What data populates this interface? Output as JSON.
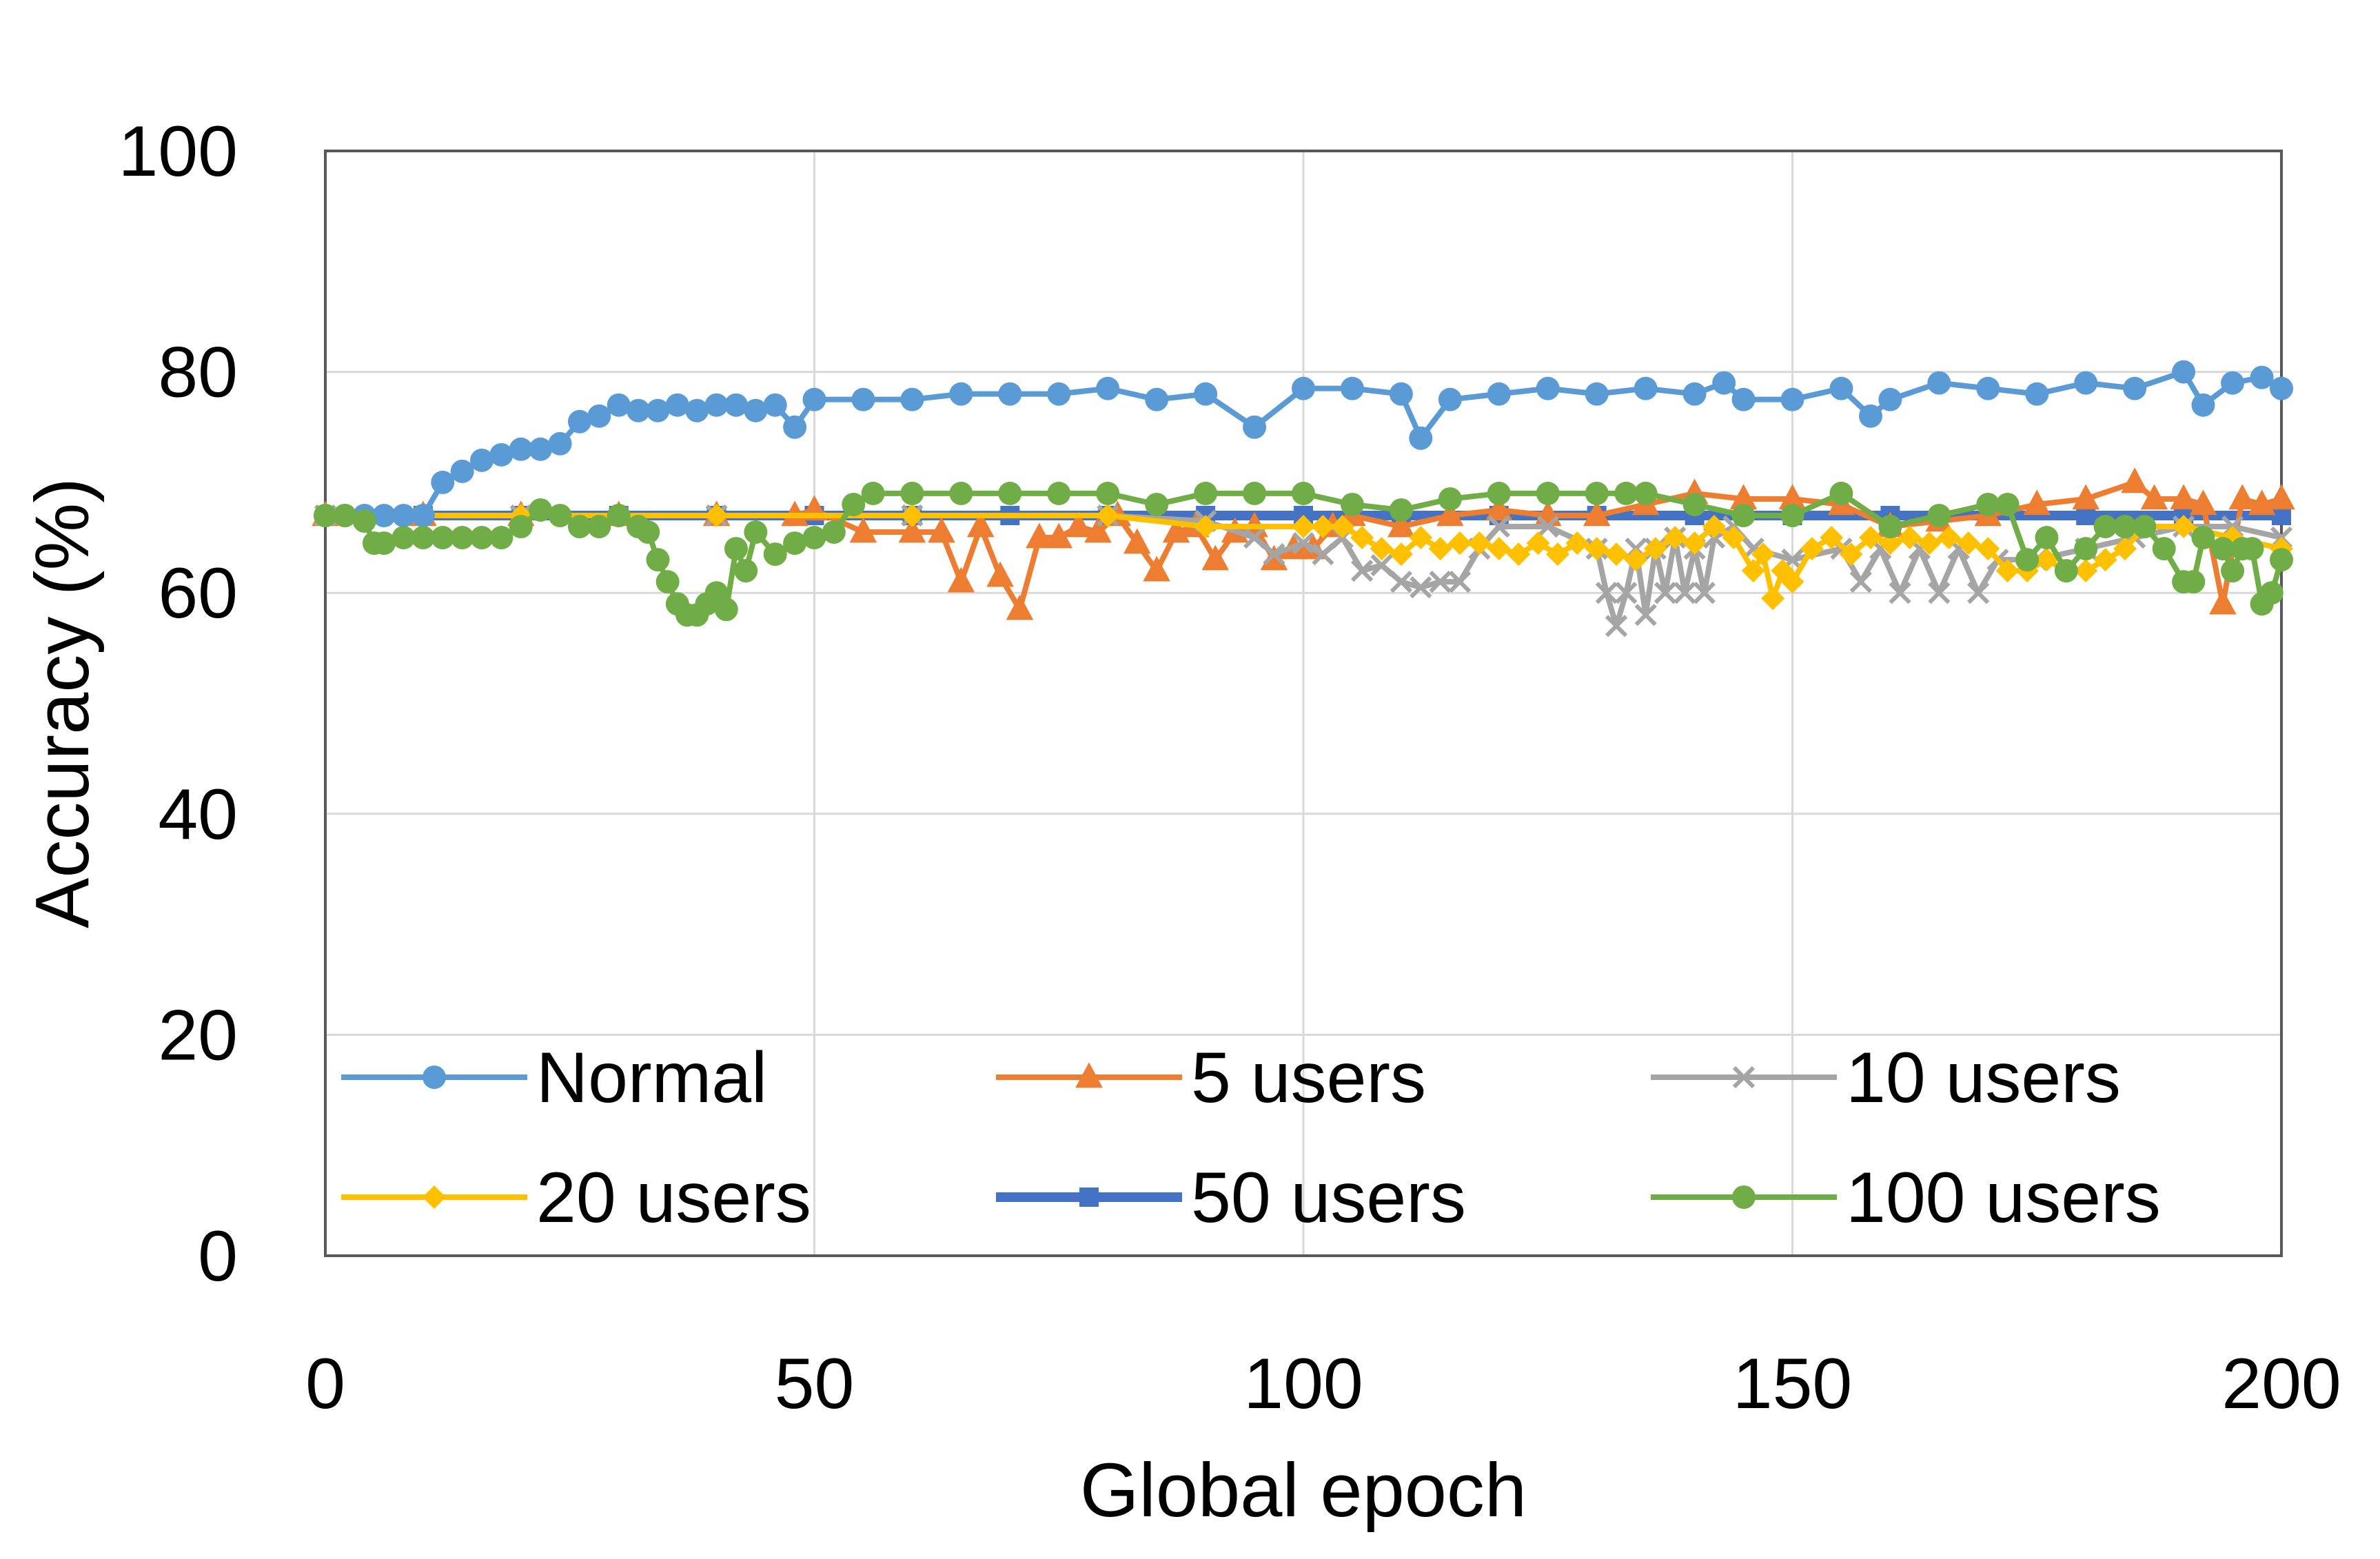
{
  "chart_data": {
    "type": "line",
    "xlabel": "Global epoch",
    "ylabel": "Accuracy (%)",
    "xlim": [
      0,
      200
    ],
    "ylim": [
      0,
      100
    ],
    "xticks": [
      0,
      50,
      100,
      150,
      200
    ],
    "yticks": [
      0,
      20,
      40,
      60,
      80,
      100
    ],
    "grid": true,
    "legend": "inside-bottom",
    "series": [
      {
        "name": "Normal",
        "color": "#5B9BD5",
        "marker": "circle",
        "x": [
          0,
          2,
          4,
          6,
          8,
          10,
          12,
          14,
          16,
          18,
          20,
          22,
          24,
          26,
          28,
          30,
          32,
          34,
          36,
          38,
          40,
          42,
          44,
          46,
          48,
          50,
          55,
          60,
          65,
          70,
          75,
          80,
          85,
          90,
          95,
          100,
          105,
          110,
          112,
          115,
          120,
          125,
          130,
          135,
          140,
          143,
          145,
          150,
          155,
          158,
          160,
          165,
          170,
          175,
          180,
          185,
          190,
          192,
          195,
          198,
          200
        ],
        "y": [
          67,
          67,
          67,
          67,
          67,
          67,
          70,
          71,
          72,
          72.5,
          73,
          73,
          73.5,
          75.5,
          76,
          77,
          76.5,
          76.5,
          77,
          76.5,
          77,
          77,
          76.5,
          77,
          75,
          77.5,
          77.5,
          77.5,
          78,
          78,
          78,
          78.5,
          77.5,
          78,
          75,
          78.5,
          78.5,
          78,
          74,
          77.5,
          78,
          78.5,
          78,
          78.5,
          78,
          79,
          77.5,
          77.5,
          78.5,
          76,
          77.5,
          79,
          78.5,
          78,
          79,
          78.5,
          80,
          77,
          79,
          79.5,
          78.5
        ]
      },
      {
        "name": "5 users",
        "color": "#ED7D31",
        "marker": "triangle",
        "x": [
          0,
          10,
          20,
          30,
          40,
          48,
          50,
          55,
          60,
          63,
          65,
          67,
          69,
          71,
          73,
          75,
          77,
          79,
          81,
          83,
          85,
          87,
          89,
          91,
          93,
          95,
          97,
          99,
          101,
          103,
          105,
          110,
          115,
          120,
          125,
          130,
          135,
          140,
          145,
          150,
          155,
          160,
          165,
          170,
          175,
          180,
          185,
          187,
          190,
          192,
          194,
          196,
          198,
          200
        ],
        "y": [
          67,
          67,
          67,
          67,
          67,
          67,
          67.5,
          65.5,
          65.5,
          65.5,
          61,
          66,
          61.5,
          58.5,
          65,
          65,
          66,
          65.5,
          67,
          64.5,
          62,
          65.5,
          66,
          63,
          65.5,
          66,
          63,
          64,
          64,
          66,
          67,
          66,
          67,
          67.5,
          67,
          67,
          68,
          69,
          68.5,
          68.5,
          68,
          66,
          66.5,
          67,
          68,
          68.5,
          70,
          68.5,
          68.5,
          68,
          59,
          68.5,
          68,
          68.5
        ]
      },
      {
        "name": "10 users",
        "color": "#A5A5A5",
        "marker": "x",
        "x": [
          0,
          20,
          40,
          60,
          80,
          90,
          95,
          97,
          100,
          102,
          104,
          106,
          108,
          110,
          112,
          114,
          116,
          118,
          120,
          125,
          130,
          131,
          132,
          133,
          134,
          135,
          136,
          137,
          138,
          139,
          140,
          141,
          142,
          144,
          146,
          150,
          155,
          157,
          159,
          161,
          163,
          165,
          167,
          169,
          171,
          175,
          180,
          185,
          190,
          195,
          200
        ],
        "y": [
          67,
          67,
          67,
          67,
          67,
          66.5,
          65,
          63.5,
          64.5,
          63.5,
          65,
          62,
          62.5,
          61,
          60.5,
          61,
          61,
          64,
          66,
          66,
          64,
          60,
          57,
          60,
          64,
          58,
          64,
          60,
          65,
          60,
          64,
          60,
          65,
          66,
          64,
          63,
          64,
          61,
          64,
          60,
          64,
          60,
          64,
          60,
          63,
          63,
          64,
          65,
          66,
          66,
          65
        ]
      },
      {
        "name": "20 users",
        "color": "#FFC000",
        "marker": "diamond",
        "x": [
          0,
          20,
          40,
          60,
          80,
          90,
          100,
          102,
          104,
          106,
          108,
          110,
          112,
          114,
          116,
          118,
          120,
          122,
          124,
          126,
          128,
          130,
          132,
          134,
          136,
          138,
          140,
          142,
          144,
          146,
          147,
          148,
          149,
          150,
          152,
          154,
          156,
          158,
          160,
          162,
          164,
          166,
          168,
          170,
          172,
          174,
          176,
          178,
          180,
          182,
          184,
          186,
          190,
          195,
          200
        ],
        "y": [
          67,
          67,
          67,
          67,
          67,
          66,
          66,
          66,
          66,
          65,
          64,
          63.5,
          65,
          64,
          64.5,
          64.5,
          64,
          63.5,
          64.5,
          63.5,
          64.5,
          64,
          63.5,
          63,
          64,
          65,
          64.5,
          66,
          65,
          62,
          63.5,
          59.5,
          62,
          61,
          64,
          65,
          63.5,
          65,
          64.5,
          65,
          64.5,
          65,
          64.5,
          64,
          62,
          62,
          63,
          62,
          62,
          63,
          64,
          66,
          66,
          65,
          64
        ]
      },
      {
        "name": "50 users",
        "color": "#4472C4",
        "marker": "square",
        "x": [
          0,
          10,
          20,
          30,
          40,
          50,
          60,
          70,
          80,
          90,
          100,
          110,
          120,
          130,
          140,
          150,
          160,
          170,
          180,
          190,
          200
        ],
        "y": [
          67,
          67,
          67,
          67,
          67,
          67,
          67,
          67,
          67,
          67,
          67,
          67,
          67,
          67,
          67,
          67,
          67,
          67,
          67,
          67,
          67
        ]
      },
      {
        "name": "100 users",
        "color": "#70AD47",
        "marker": "circle",
        "x": [
          0,
          2,
          4,
          5,
          6,
          8,
          10,
          12,
          14,
          16,
          18,
          20,
          22,
          24,
          26,
          28,
          30,
          32,
          33,
          34,
          35,
          36,
          37,
          38,
          39,
          40,
          41,
          42,
          43,
          44,
          46,
          48,
          50,
          52,
          54,
          56,
          60,
          65,
          70,
          75,
          80,
          85,
          90,
          95,
          100,
          105,
          110,
          115,
          120,
          125,
          130,
          133,
          135,
          140,
          145,
          150,
          155,
          160,
          165,
          170,
          172,
          174,
          176,
          178,
          180,
          182,
          184,
          186,
          188,
          190,
          191,
          192,
          194,
          195,
          196,
          197,
          198,
          199,
          200
        ],
        "y": [
          67,
          67,
          66.5,
          64.5,
          64.5,
          65,
          65,
          65,
          65,
          65,
          65,
          66,
          67.5,
          67,
          66,
          66,
          67,
          66,
          65.5,
          63,
          61,
          59,
          58,
          58,
          59,
          60,
          58.5,
          64,
          62,
          65.5,
          63.5,
          64.5,
          65,
          65.5,
          68,
          69,
          69,
          69,
          69,
          69,
          69,
          68,
          69,
          69,
          69,
          68,
          67.5,
          68.5,
          69,
          69,
          69,
          69,
          69,
          68,
          67,
          67,
          69,
          66,
          67,
          68,
          68,
          63,
          65,
          62,
          64,
          66,
          66,
          66,
          64,
          61,
          61,
          65,
          64,
          62,
          64,
          64,
          59,
          60,
          63
        ]
      }
    ]
  }
}
